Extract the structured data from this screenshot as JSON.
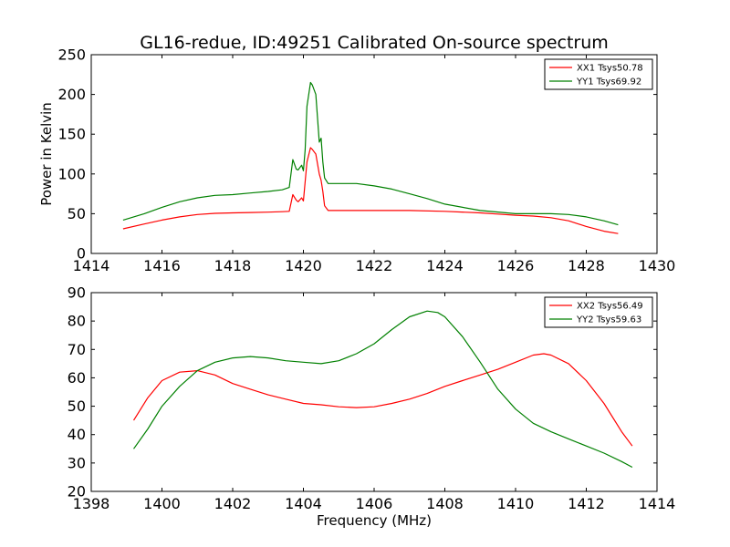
{
  "title": "GL16-redue, ID:49251 Calibrated On-source spectrum",
  "chart_data": [
    {
      "type": "line",
      "ylabel": "Power in Kelvin",
      "xlabel": "",
      "xlim": [
        1414,
        1430
      ],
      "ylim": [
        0,
        250
      ],
      "xticks": [
        1414,
        1416,
        1418,
        1420,
        1422,
        1424,
        1426,
        1428,
        1430
      ],
      "yticks": [
        0,
        50,
        100,
        150,
        200,
        250
      ],
      "grid": false,
      "legend_position": "top-right",
      "series": [
        {
          "name": "XX1 Tsys50.78",
          "color": "#ff0000",
          "x": [
            1414.9,
            1415.5,
            1416.0,
            1416.5,
            1417.0,
            1417.5,
            1418.0,
            1418.5,
            1419.0,
            1419.4,
            1419.6,
            1419.7,
            1419.8,
            1419.85,
            1419.95,
            1420.0,
            1420.05,
            1420.1,
            1420.2,
            1420.25,
            1420.35,
            1420.45,
            1420.5,
            1420.55,
            1420.6,
            1420.7,
            1421.0,
            1422.0,
            1423.0,
            1424.0,
            1425.0,
            1425.5,
            1426.0,
            1426.5,
            1427.0,
            1427.5,
            1428.0,
            1428.5,
            1428.9
          ],
          "y": [
            31,
            37,
            42,
            46,
            49,
            50.5,
            51,
            51.5,
            52,
            52.5,
            53,
            74,
            67,
            65,
            70,
            66,
            90,
            115,
            133,
            131,
            125,
            100,
            92,
            78,
            60,
            54,
            54,
            54,
            54,
            53,
            51,
            49.5,
            48,
            47,
            45,
            41,
            34,
            28,
            25
          ]
        },
        {
          "name": "YY1 Tsys69.92",
          "color": "#008000",
          "x": [
            1414.9,
            1415.5,
            1416.0,
            1416.5,
            1417.0,
            1417.5,
            1418.0,
            1418.5,
            1419.0,
            1419.4,
            1419.6,
            1419.7,
            1419.8,
            1419.85,
            1419.95,
            1420.0,
            1420.05,
            1420.1,
            1420.2,
            1420.25,
            1420.35,
            1420.45,
            1420.5,
            1420.55,
            1420.6,
            1420.7,
            1421.0,
            1421.5,
            1422.0,
            1422.5,
            1423.0,
            1423.5,
            1424.0,
            1425.0,
            1426.0,
            1426.5,
            1427.0,
            1427.5,
            1428.0,
            1428.5,
            1428.9
          ],
          "y": [
            42,
            50,
            58,
            65,
            70,
            73,
            74,
            76,
            78,
            80,
            83,
            118,
            106,
            105,
            111,
            104,
            130,
            185,
            215,
            212,
            200,
            140,
            145,
            115,
            95,
            88,
            88,
            88,
            85,
            81,
            75,
            69,
            62,
            54,
            50,
            50,
            50,
            49,
            46,
            41,
            36
          ]
        }
      ]
    },
    {
      "type": "line",
      "xlabel": "Frequency (MHz)",
      "ylabel": "",
      "xlim": [
        1398,
        1414
      ],
      "ylim": [
        20,
        90
      ],
      "xticks": [
        1398,
        1400,
        1402,
        1404,
        1406,
        1408,
        1410,
        1412,
        1414
      ],
      "yticks": [
        20,
        30,
        40,
        50,
        60,
        70,
        80,
        90
      ],
      "grid": false,
      "legend_position": "top-right",
      "series": [
        {
          "name": "XX2 Tsys56.49",
          "color": "#ff0000",
          "x": [
            1399.2,
            1399.6,
            1400.0,
            1400.5,
            1401.0,
            1401.5,
            1402.0,
            1402.5,
            1403.0,
            1403.5,
            1404.0,
            1404.5,
            1405.0,
            1405.5,
            1406.0,
            1406.5,
            1407.0,
            1407.5,
            1408.0,
            1408.5,
            1409.0,
            1409.5,
            1410.0,
            1410.5,
            1410.8,
            1411.0,
            1411.5,
            1412.0,
            1412.5,
            1413.0,
            1413.3
          ],
          "y": [
            45,
            53,
            59,
            62,
            62.5,
            61,
            58,
            56,
            54,
            52.5,
            51,
            50.5,
            49.8,
            49.5,
            49.8,
            51,
            52.5,
            54.5,
            57,
            59,
            61,
            63,
            65.5,
            68,
            68.5,
            68,
            65,
            59,
            51,
            41,
            36
          ]
        },
        {
          "name": "YY2 Tsys59.63",
          "color": "#008000",
          "x": [
            1399.2,
            1399.6,
            1400.0,
            1400.5,
            1401.0,
            1401.5,
            1402.0,
            1402.5,
            1403.0,
            1403.5,
            1404.0,
            1404.5,
            1405.0,
            1405.5,
            1406.0,
            1406.5,
            1407.0,
            1407.5,
            1407.8,
            1408.0,
            1408.5,
            1409.0,
            1409.5,
            1410.0,
            1410.5,
            1411.0,
            1411.5,
            1412.0,
            1412.5,
            1413.0,
            1413.3
          ],
          "y": [
            35,
            42,
            50,
            57,
            62.5,
            65.5,
            67,
            67.5,
            67,
            66,
            65.5,
            65,
            66,
            68.5,
            72,
            77,
            81.5,
            83.5,
            83,
            81.5,
            74.5,
            65.5,
            56,
            49,
            44,
            41,
            38.5,
            36,
            33.5,
            30.5,
            28.5
          ]
        }
      ]
    }
  ]
}
